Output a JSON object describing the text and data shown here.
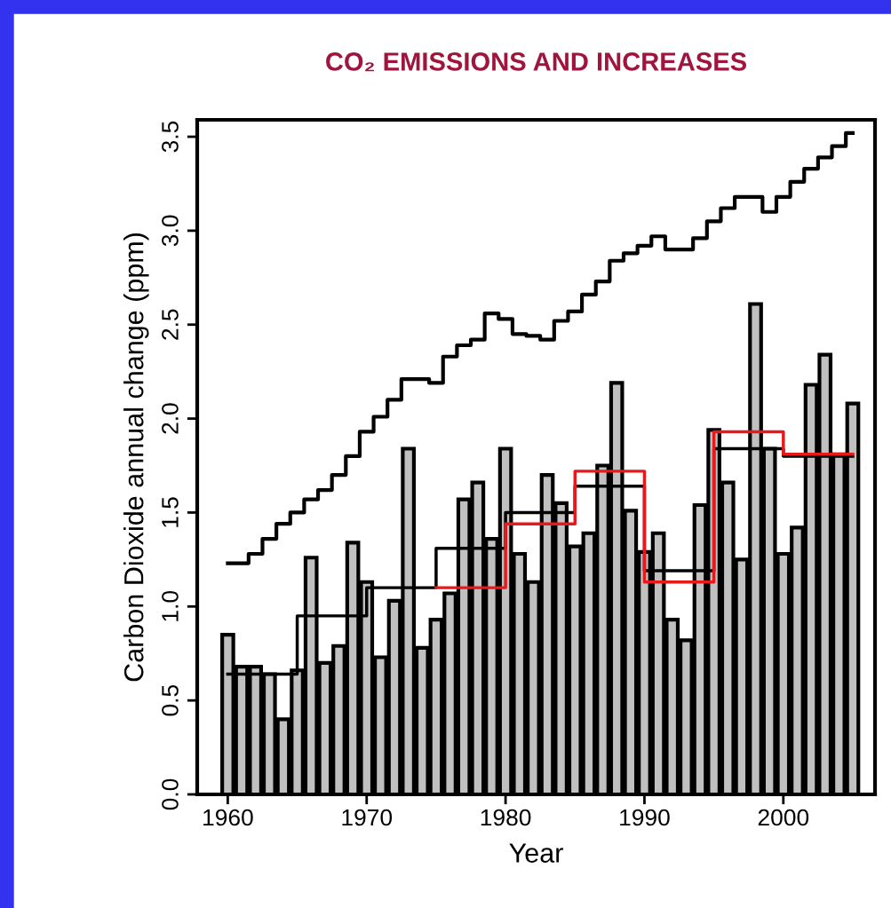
{
  "chart_data": {
    "type": "bar",
    "title": "CO₂ EMISSIONS AND INCREASES",
    "xlabel": "Year",
    "ylabel": "Carbon Dioxide annual change (ppm)",
    "x": [
      1960,
      1961,
      1962,
      1963,
      1964,
      1965,
      1966,
      1967,
      1968,
      1969,
      1970,
      1971,
      1972,
      1973,
      1974,
      1975,
      1976,
      1977,
      1978,
      1979,
      1980,
      1981,
      1982,
      1983,
      1984,
      1985,
      1986,
      1987,
      1988,
      1989,
      1990,
      1991,
      1992,
      1993,
      1994,
      1995,
      1996,
      1997,
      1998,
      1999,
      2000,
      2001,
      2002,
      2003,
      2004,
      2005
    ],
    "series": [
      {
        "color": "#c0c0c0",
        "values": [
          0.85,
          0.68,
          0.68,
          0.64,
          0.4,
          0.66,
          1.26,
          0.7,
          0.79,
          1.34,
          1.13,
          0.73,
          1.03,
          1.84,
          0.78,
          0.93,
          1.07,
          1.57,
          1.66,
          1.36,
          1.84,
          1.28,
          1.13,
          1.7,
          1.55,
          1.32,
          1.39,
          1.75,
          2.19,
          1.51,
          1.29,
          1.39,
          0.93,
          0.82,
          1.54,
          1.94,
          1.66,
          1.25,
          2.61,
          1.84,
          1.28,
          1.42,
          2.18,
          2.34,
          1.81,
          2.08
        ]
      },
      {
        "type": "step",
        "color": "#000000",
        "values": [
          1.23,
          1.23,
          1.28,
          1.36,
          1.44,
          1.5,
          1.57,
          1.62,
          1.7,
          1.8,
          1.93,
          2.01,
          2.1,
          2.21,
          2.21,
          2.19,
          2.33,
          2.39,
          2.42,
          2.56,
          2.53,
          2.45,
          2.44,
          2.42,
          2.52,
          2.57,
          2.66,
          2.73,
          2.84,
          2.88,
          2.92,
          2.97,
          2.9,
          2.9,
          2.96,
          3.05,
          3.12,
          3.18,
          3.18,
          3.1,
          3.18,
          3.26,
          3.33,
          3.39,
          3.45,
          3.52
        ]
      },
      {
        "type": "step",
        "color": "#000000",
        "x": [
          1960,
          1965,
          1970,
          1975,
          1980,
          1985,
          1990,
          1995,
          2000,
          2005
        ],
        "values": [
          0.64,
          0.95,
          1.1,
          1.31,
          1.5,
          1.64,
          1.19,
          1.84,
          1.8,
          1.8
        ]
      },
      {
        "type": "step",
        "color": "#e8191c",
        "x": [
          1975,
          1980,
          1985,
          1990,
          1995,
          2000,
          2005
        ],
        "values": [
          1.1,
          1.44,
          1.72,
          1.13,
          1.93,
          1.81,
          1.81
        ]
      }
    ],
    "xlim": [
      1957.8,
      2006.6
    ],
    "ylim": [
      0,
      3.59
    ],
    "xticks": [
      1960,
      1970,
      1980,
      1990,
      2000
    ],
    "yticks": [
      {
        "value": 0,
        "label": "0.0"
      },
      {
        "value": 0.5,
        "label": "0.5"
      },
      {
        "value": 1,
        "label": "1.0"
      },
      {
        "value": 1.5,
        "label": "1.5"
      },
      {
        "value": 2,
        "label": "2.0"
      },
      {
        "value": 2.5,
        "label": "2.5"
      },
      {
        "value": 3,
        "label": "3.0"
      },
      {
        "value": 3.5,
        "label": "3.5"
      }
    ],
    "grid": false
  }
}
